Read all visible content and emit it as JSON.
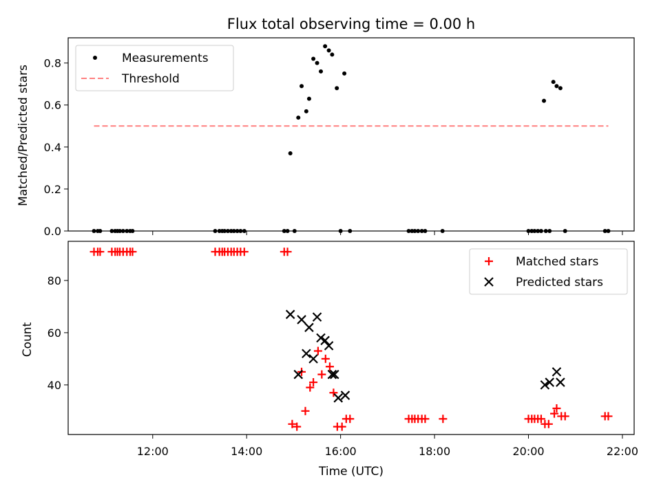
{
  "title": "Flux total observing time = 0.00 h",
  "chart_data": [
    {
      "type": "scatter",
      "ylabel": "Matched/Predicted stars",
      "xlim": [
        10.2,
        22.25
      ],
      "ylim": [
        0,
        0.92
      ],
      "yticks": [
        0.0,
        0.2,
        0.4,
        0.6,
        0.8
      ],
      "ytick_labels": [
        "0.0",
        "0.2",
        "0.4",
        "0.6",
        "0.8"
      ],
      "legend": {
        "placement": "top-left",
        "entries": [
          "Measurements",
          "Threshold"
        ]
      },
      "series": [
        {
          "name": "Measurements",
          "marker": "dot",
          "color": "#000000",
          "x": [
            10.75,
            10.83,
            10.88,
            11.13,
            11.2,
            11.25,
            11.3,
            11.37,
            11.45,
            11.52,
            11.57,
            13.33,
            13.42,
            13.48,
            13.53,
            13.6,
            13.67,
            13.73,
            13.8,
            13.87,
            13.95,
            14.8,
            14.87,
            14.93,
            15.02,
            15.1,
            15.17,
            15.27,
            15.33,
            15.42,
            15.5,
            15.58,
            15.67,
            15.75,
            15.82,
            15.92,
            16.0,
            16.08,
            16.2,
            17.45,
            17.52,
            17.58,
            17.65,
            17.73,
            17.8,
            18.17,
            20.0,
            20.07,
            20.13,
            20.2,
            20.27,
            20.33,
            20.37,
            20.45,
            20.53,
            20.6,
            20.68,
            20.78,
            21.63,
            21.7
          ],
          "y": [
            0,
            0,
            0,
            0,
            0,
            0,
            0,
            0,
            0,
            0,
            0,
            0,
            0,
            0,
            0,
            0,
            0,
            0,
            0,
            0,
            0,
            0,
            0,
            0.37,
            0,
            0.54,
            0.69,
            0.57,
            0.63,
            0.82,
            0.8,
            0.76,
            0.88,
            0.86,
            0.84,
            0.68,
            0,
            0.75,
            0,
            0,
            0,
            0,
            0,
            0,
            0,
            0,
            0,
            0,
            0,
            0,
            0,
            0.62,
            0,
            0,
            0.71,
            0.69,
            0.68,
            0,
            0,
            0
          ]
        },
        {
          "name": "Threshold",
          "marker": "dashed-line",
          "color": "#ff7f7f",
          "x": [
            10.75,
            21.7
          ],
          "y": [
            0.5,
            0.5
          ]
        }
      ]
    },
    {
      "type": "scatter",
      "xlabel": "Time (UTC)",
      "ylabel": "Count",
      "xlim": [
        10.2,
        22.25
      ],
      "ylim": [
        21,
        95
      ],
      "yticks": [
        40,
        60,
        80
      ],
      "ytick_labels": [
        "40",
        "60",
        "80"
      ],
      "xticks": [
        12,
        14,
        16,
        18,
        20,
        22
      ],
      "xtick_labels": [
        "12:00",
        "14:00",
        "16:00",
        "18:00",
        "20:00",
        "22:00"
      ],
      "legend": {
        "placement": "top-right",
        "entries": [
          "Matched stars",
          "Predicted stars"
        ]
      },
      "series": [
        {
          "name": "Matched stars",
          "marker": "plus",
          "color": "#ff0000",
          "x": [
            10.75,
            10.83,
            10.88,
            11.13,
            11.2,
            11.25,
            11.3,
            11.37,
            11.45,
            11.52,
            11.57,
            13.33,
            13.42,
            13.48,
            13.53,
            13.6,
            13.67,
            13.73,
            13.8,
            13.87,
            13.95,
            14.8,
            14.87,
            14.97,
            15.07,
            15.17,
            15.25,
            15.35,
            15.42,
            15.52,
            15.6,
            15.68,
            15.77,
            15.85,
            15.93,
            16.03,
            16.12,
            16.2,
            17.45,
            17.52,
            17.58,
            17.65,
            17.73,
            17.8,
            18.18,
            20.0,
            20.07,
            20.13,
            20.2,
            20.27,
            20.35,
            20.43,
            20.55,
            20.6,
            20.7,
            20.78,
            21.63,
            21.7
          ],
          "y": [
            91,
            91,
            91,
            91,
            91,
            91,
            91,
            91,
            91,
            91,
            91,
            91,
            91,
            91,
            91,
            91,
            91,
            91,
            91,
            91,
            91,
            91,
            91,
            25,
            24,
            45,
            30,
            39,
            41,
            53,
            44,
            50,
            47,
            37,
            24,
            24,
            27,
            27,
            27,
            27,
            27,
            27,
            27,
            27,
            27,
            27,
            27,
            27,
            27,
            27,
            25,
            25,
            29,
            31,
            28,
            28,
            28,
            28
          ]
        },
        {
          "name": "Predicted stars",
          "marker": "x",
          "color": "#000000",
          "x": [
            14.93,
            15.1,
            15.17,
            15.27,
            15.33,
            15.42,
            15.5,
            15.58,
            15.67,
            15.75,
            15.82,
            15.87,
            15.95,
            16.1,
            20.35,
            20.45,
            20.6,
            20.68
          ],
          "y": [
            67,
            44,
            65,
            52,
            62,
            50,
            66,
            58,
            57,
            55,
            44,
            44,
            35,
            36,
            40,
            41,
            45,
            41
          ]
        }
      ]
    }
  ]
}
